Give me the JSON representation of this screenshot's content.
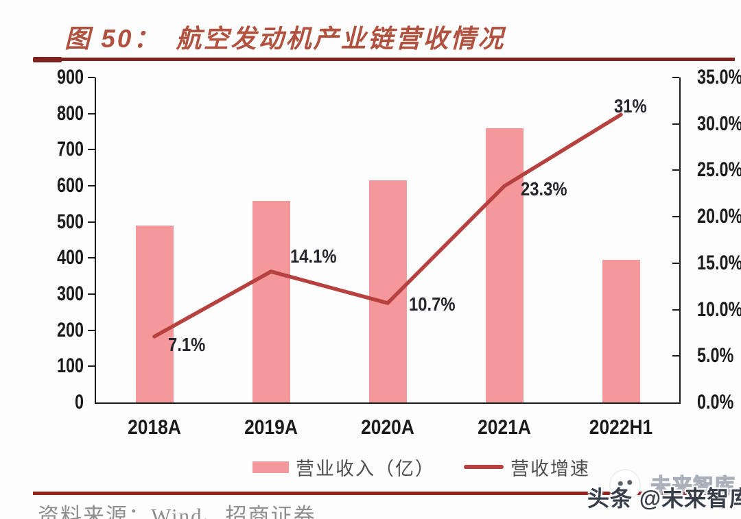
{
  "figure": {
    "label": "图 50：",
    "title": "航空发动机产业链营收情况"
  },
  "chart_data": {
    "type": "bar",
    "subtype": "bar+line dual-axis combo",
    "categories": [
      "2018A",
      "2019A",
      "2020A",
      "2021A",
      "2022H1"
    ],
    "series": [
      {
        "name": "营业收入（亿）",
        "type": "bar",
        "axis": "left",
        "color": "#F5989C",
        "values": [
          490,
          558,
          616,
          760,
          394
        ]
      },
      {
        "name": "营收增速",
        "type": "line",
        "axis": "right",
        "color": "#B6413E",
        "values": [
          7.1,
          14.1,
          10.7,
          23.3,
          31
        ],
        "point_labels": [
          "7.1%",
          "14.1%",
          "10.7%",
          "23.3%",
          "31%"
        ]
      }
    ],
    "left_axis": {
      "min": 0,
      "max": 900,
      "step": 100,
      "ticks": [
        "900",
        "800",
        "700",
        "600",
        "500",
        "400",
        "300",
        "200",
        "100",
        "0"
      ]
    },
    "right_axis": {
      "min": 0,
      "max": 35,
      "step": 5,
      "ticks": [
        "35.0%",
        "30.0%",
        "25.0%",
        "20.0%",
        "15.0%",
        "10.0%",
        "5.0%",
        "0.0%"
      ]
    },
    "legend": [
      {
        "label": "营业收入（亿）",
        "marker": "bar"
      },
      {
        "label": "营收增速",
        "marker": "line"
      }
    ],
    "grid": false,
    "legend_position": "bottom-center"
  },
  "source": {
    "text": "资料来源：Wind、招商证券"
  },
  "watermark": {
    "main_text": "头条 @未来智库",
    "ghost_text": "未来智库"
  },
  "colors": {
    "bar": "#F5989C",
    "line": "#B6413E",
    "title": "#B0523F",
    "rule_top": "#7E231D",
    "rule_bottom": "#96201A",
    "axis": "#1A1A1A",
    "tick_label": "#1B1B1B",
    "point_label": "#26262E",
    "legend_text": "#4F4F4F",
    "source_text": "#8E8E8E",
    "watermark_text": "#363D49"
  }
}
